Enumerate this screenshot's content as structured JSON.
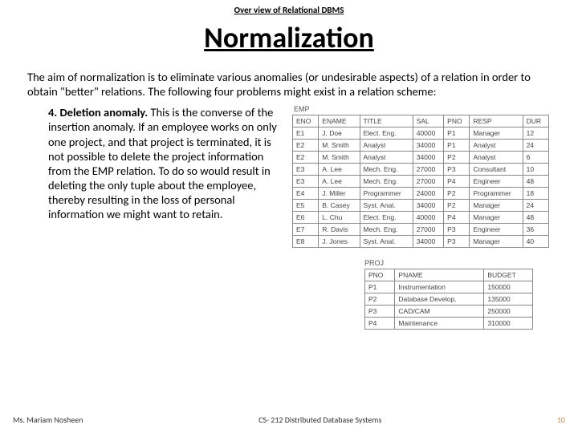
{
  "header": {
    "overline": "Over view of Relational DBMS",
    "title": "Normalization"
  },
  "intro": "The aim of normalization is to eliminate various anomalies (or undesirable aspects) of a relation in order to obtain \"better\" relations. The following four problems might exist in a relation scheme:",
  "anomaly": {
    "number": "4.",
    "name": "Deletion anomaly.",
    "text": "This is the converse of the insertion anomaly. If an employee works on only one project, and that project is terminated, it is not possible to delete the project information from the EMP relation. To do so would result in deleting the only tuple about the employee, thereby resulting in the loss of personal information we might want to retain."
  },
  "emp_table": {
    "label": "EMP",
    "columns": [
      "ENO",
      "ENAME",
      "TITLE",
      "SAL",
      "PNO",
      "RESP",
      "DUR"
    ],
    "rows": [
      [
        "E1",
        "J. Doe",
        "Elect. Eng.",
        "40000",
        "P1",
        "Manager",
        "12"
      ],
      [
        "E2",
        "M. Smith",
        "Analyst",
        "34000",
        "P1",
        "Analyst",
        "24"
      ],
      [
        "E2",
        "M. Smith",
        "Analyst",
        "34000",
        "P2",
        "Analyst",
        "6"
      ],
      [
        "E3",
        "A. Lee",
        "Mech. Eng.",
        "27000",
        "P3",
        "Consultant",
        "10"
      ],
      [
        "E3",
        "A. Lee",
        "Mech. Eng.",
        "27000",
        "P4",
        "Engineer",
        "48"
      ],
      [
        "E4",
        "J. Miller",
        "Programmer",
        "24000",
        "P2",
        "Programmer",
        "18"
      ],
      [
        "E5",
        "B. Casey",
        "Syst. Anal.",
        "34000",
        "P2",
        "Manager",
        "24"
      ],
      [
        "E6",
        "L. Chu",
        "Elect. Eng.",
        "40000",
        "P4",
        "Manager",
        "48"
      ],
      [
        "E7",
        "R. Davis",
        "Mech. Eng.",
        "27000",
        "P3",
        "Engineer",
        "36"
      ],
      [
        "E8",
        "J. Jones",
        "Syst. Anal.",
        "34000",
        "P3",
        "Manager",
        "40"
      ]
    ]
  },
  "proj_table": {
    "label": "PROJ",
    "columns": [
      "PNO",
      "PNAME",
      "BUDGET"
    ],
    "rows": [
      [
        "P1",
        "Instrumentation",
        "150000"
      ],
      [
        "P2",
        "Database Develop.",
        "135000"
      ],
      [
        "P3",
        "CAD/CAM",
        "250000"
      ],
      [
        "P4",
        "Maintenance",
        "310000"
      ]
    ]
  },
  "footer": {
    "author": "Ms. Mariam Nosheen",
    "course": "CS- 212 Distributed Database Systems",
    "page": "10"
  }
}
